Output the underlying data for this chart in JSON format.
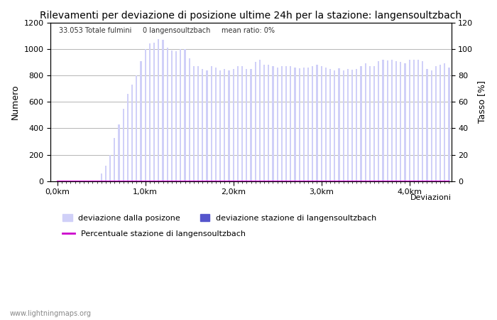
{
  "title": "Rilevamenti per deviazione di posizione ultime 24h per la stazione: langensoultzbach",
  "subtitle": "33.053 Totale fulmini     0 langensoultzbach     mean ratio: 0%",
  "xlabel": "Deviazioni",
  "ylabel_left": "Numero",
  "ylabel_right": "Tasso [%]",
  "bar_color": "#d0d0f8",
  "bar_color_station": "#5555cc",
  "line_color": "#cc00cc",
  "background_color": "#ffffff",
  "grid_color": "#999999",
  "ylim_left": [
    0,
    1200
  ],
  "ylim_right": [
    0,
    120
  ],
  "yticks_left": [
    0,
    200,
    400,
    600,
    800,
    1000,
    1200
  ],
  "yticks_right": [
    0,
    20,
    40,
    60,
    80,
    100,
    120
  ],
  "xtick_labels": [
    "0,0km",
    "1,0km",
    "2,0km",
    "3,0km",
    "4,0km"
  ],
  "xtick_positions": [
    0,
    20,
    40,
    60,
    80
  ],
  "bar_values": [
    5,
    3,
    5,
    5,
    5,
    5,
    5,
    5,
    5,
    5,
    60,
    120,
    200,
    325,
    430,
    550,
    660,
    730,
    800,
    910,
    1000,
    1040,
    1045,
    1075,
    1070,
    1010,
    990,
    980,
    1000,
    1000,
    930,
    870,
    870,
    850,
    840,
    870,
    860,
    840,
    850,
    840,
    850,
    870,
    870,
    850,
    850,
    900,
    920,
    880,
    880,
    870,
    860,
    870,
    870,
    870,
    860,
    855,
    860,
    860,
    870,
    880,
    870,
    860,
    850,
    840,
    855,
    840,
    850,
    845,
    850,
    870,
    890,
    870,
    870,
    910,
    920,
    915,
    920,
    910,
    900,
    890,
    920,
    920,
    920,
    910,
    850,
    840,
    870,
    880,
    890,
    860
  ],
  "station_values": [
    0,
    0,
    0,
    0,
    0,
    0,
    0,
    0,
    0,
    0,
    0,
    0,
    0,
    0,
    0,
    0,
    0,
    0,
    0,
    0,
    0,
    0,
    0,
    0,
    0,
    0,
    0,
    0,
    0,
    0,
    0,
    0,
    0,
    0,
    0,
    0,
    0,
    0,
    0,
    0,
    0,
    0,
    0,
    0,
    0,
    0,
    0,
    0,
    0,
    0,
    0,
    0,
    0,
    0,
    0,
    0,
    0,
    0,
    0,
    0,
    0,
    0,
    0,
    0,
    0,
    0,
    0,
    0,
    0,
    0,
    0,
    0,
    0,
    0,
    0,
    0,
    0,
    0,
    0,
    0,
    0,
    0,
    0,
    0,
    0,
    0,
    0,
    0,
    0,
    0
  ],
  "n_bars": 90,
  "bar_width": 0.35,
  "title_fontsize": 10,
  "axis_fontsize": 9,
  "tick_fontsize": 8,
  "legend_fontsize": 8,
  "watermark": "www.lightningmaps.org"
}
